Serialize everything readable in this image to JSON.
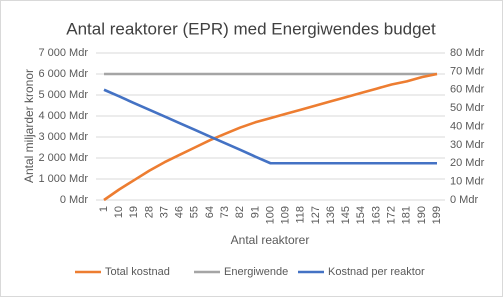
{
  "chart_data": {
    "type": "line",
    "title": "Antal reaktorer (EPR) med Energiwendes budget",
    "x_label": "Antal reaktorer",
    "y_label": "Antal miljarder kronor",
    "categories": [
      1,
      10,
      19,
      28,
      37,
      46,
      55,
      64,
      73,
      82,
      91,
      100,
      109,
      118,
      127,
      136,
      145,
      154,
      163,
      172,
      181,
      190,
      199
    ],
    "series": [
      {
        "name": "Total kostnad",
        "color": "#ED7D31",
        "values": [
          0,
          500,
          950,
          1400,
          1800,
          2150,
          2500,
          2850,
          3150,
          3450,
          3700,
          3900,
          4100,
          4300,
          4500,
          4700,
          4900,
          5100,
          5300,
          5500,
          5650,
          5850,
          6000
        ]
      },
      {
        "name": "Energiwende",
        "color": "#A5A5A5",
        "values": [
          6000,
          6000,
          6000,
          6000,
          6000,
          6000,
          6000,
          6000,
          6000,
          6000,
          6000,
          6000,
          6000,
          6000,
          6000,
          6000,
          6000,
          6000,
          6000,
          6000,
          6000,
          6000,
          6000
        ]
      },
      {
        "name": "Kostnad per reaktor",
        "color": "#4472C4",
        "axis": "y2",
        "values": [
          60,
          56.4,
          52.7,
          49.1,
          45.5,
          41.8,
          38.2,
          34.5,
          30.9,
          27.3,
          23.6,
          20,
          20,
          20,
          20,
          20,
          20,
          20,
          20,
          20,
          20,
          20,
          20
        ]
      }
    ],
    "ylim": [
      0,
      7000
    ],
    "yticks": [
      {
        "value": 0,
        "label": "0 Mdr"
      },
      {
        "value": 1000,
        "label": "1 000 Mdr"
      },
      {
        "value": 2000,
        "label": "2 000 Mdr"
      },
      {
        "value": 3000,
        "label": "3 000 Mdr"
      },
      {
        "value": 4000,
        "label": "4 000 Mdr"
      },
      {
        "value": 5000,
        "label": "5 000 Mdr"
      },
      {
        "value": 6000,
        "label": "6 000 Mdr"
      },
      {
        "value": 7000,
        "label": "7 000 Mdr"
      }
    ],
    "y2lim": [
      0,
      80
    ],
    "y2ticks": [
      {
        "value": 0,
        "label": "0 Mdr"
      },
      {
        "value": 10,
        "label": "10 Mdr"
      },
      {
        "value": 20,
        "label": "20 Mdr"
      },
      {
        "value": 30,
        "label": "30 Mdr"
      },
      {
        "value": 40,
        "label": "40 Mdr"
      },
      {
        "value": 50,
        "label": "50 Mdr"
      },
      {
        "value": 60,
        "label": "60 Mdr"
      },
      {
        "value": 70,
        "label": "70 Mdr"
      },
      {
        "value": 80,
        "label": "80 Mdr"
      }
    ],
    "grid": true,
    "legend": "bottom"
  }
}
